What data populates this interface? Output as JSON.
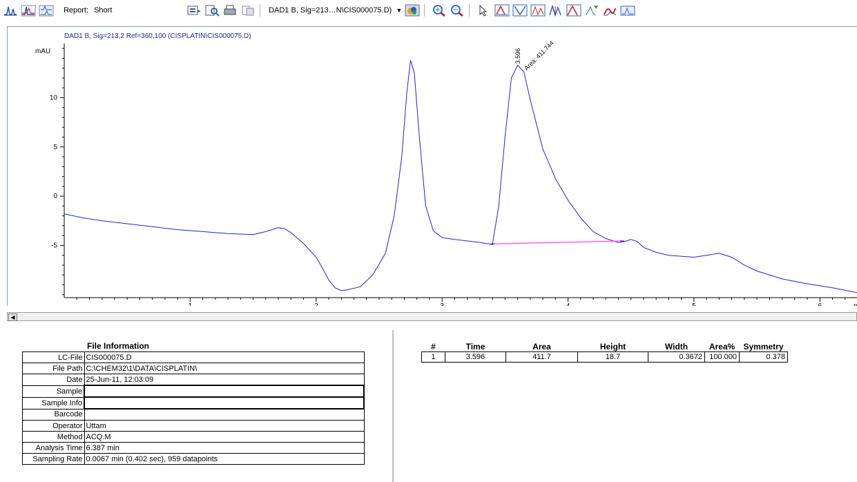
{
  "toolbar": {
    "report_label": "Report:",
    "report_value": "Short",
    "signal_select": "DAD1 B, Sig=213…N\\CIS000075.D)",
    "icons": [
      "chromatogram-icon",
      "overlay-icon",
      "separate-icon",
      "export-icon",
      "preview-icon",
      "print-icon",
      "copy-icon",
      "signal-select",
      "color-icon",
      "zoom-in-icon",
      "zoom-out-icon",
      "select-icon",
      "baseline-icon",
      "valley-icon",
      "drop-icon",
      "split-icon",
      "peak-icon",
      "integrate-icon",
      "manual-icon",
      "spectrum-icon"
    ]
  },
  "chart_data": {
    "type": "line",
    "title": "DAD1 B, Sig=213,2 Ref=360,100 (CISPLATIN\\CIS000075.D)",
    "ylabel": "mAU",
    "xlabel": "",
    "xlim": [
      0,
      6.3
    ],
    "ylim": [
      -10.3,
      15.5
    ],
    "xticks": [
      1,
      2,
      3,
      4,
      5,
      6
    ],
    "yticks": [
      -5,
      0,
      5,
      10
    ],
    "x_partial_unit_label": "m",
    "trace_color": "#2020e0",
    "baseline_color": "#ff40ff",
    "series": [
      {
        "x": [
          0.0,
          0.15,
          0.3,
          0.5,
          0.7,
          0.9,
          1.1,
          1.3,
          1.5,
          1.6,
          1.7,
          1.75,
          1.8,
          1.9,
          2.0,
          2.05,
          2.1,
          2.15,
          2.2,
          2.25,
          2.35,
          2.45,
          2.55,
          2.62,
          2.68,
          2.72,
          2.75,
          2.78,
          2.82,
          2.87,
          2.93,
          3.0,
          3.1,
          3.3,
          3.4,
          3.45,
          3.5,
          3.55,
          3.6,
          3.65,
          3.7,
          3.8,
          3.9,
          4.0,
          4.1,
          4.2,
          4.3,
          4.4,
          4.45,
          4.5,
          4.55,
          4.6,
          4.7,
          4.8,
          5.0,
          5.1,
          5.2,
          5.3,
          5.4,
          5.5,
          5.7,
          5.9,
          6.1,
          6.3
        ],
        "y": [
          -1.8,
          -2.2,
          -2.5,
          -2.8,
          -3.1,
          -3.4,
          -3.6,
          -3.8,
          -3.9,
          -3.6,
          -3.2,
          -3.3,
          -3.7,
          -4.8,
          -6.2,
          -7.3,
          -8.5,
          -9.3,
          -9.6,
          -9.5,
          -9.2,
          -8.0,
          -5.8,
          -2.0,
          4.0,
          10.5,
          13.8,
          12.5,
          6.0,
          -1.0,
          -3.5,
          -4.2,
          -4.4,
          -4.7,
          -4.9,
          -1.0,
          6.0,
          12.0,
          13.3,
          12.6,
          9.8,
          4.8,
          1.8,
          -0.4,
          -2.2,
          -3.6,
          -4.3,
          -4.7,
          -4.6,
          -4.4,
          -4.6,
          -5.2,
          -5.7,
          -6.0,
          -6.2,
          -6.0,
          -5.8,
          -6.2,
          -7.0,
          -7.6,
          -8.4,
          -8.9,
          -9.3,
          -9.8
        ]
      }
    ],
    "integration_baseline": {
      "x": [
        3.4,
        4.43
      ],
      "y": [
        -4.85,
        -4.55
      ]
    },
    "annotations": [
      {
        "label": "3.596",
        "x": 3.596,
        "y": 13.3
      },
      {
        "label": "Area: 411.744",
        "x": 3.596,
        "y": 13.3
      }
    ]
  },
  "file_info": {
    "title": "File Information",
    "rows": [
      {
        "label": "LC-File",
        "value": "CIS000075.D"
      },
      {
        "label": "File Path",
        "value": "C:\\CHEM32\\1\\DATA\\CISPLATIN\\"
      },
      {
        "label": "Date",
        "value": "25-Jun-11, 12:03:09"
      },
      {
        "label": "Sample",
        "value": ""
      },
      {
        "label": "Sample Info",
        "value": ""
      },
      {
        "label": "Barcode",
        "value": ""
      },
      {
        "label": "Operator",
        "value": "Uttam"
      },
      {
        "label": "Method",
        "value": "ACQ.M"
      },
      {
        "label": "Analysis Time",
        "value": "6.387 min"
      },
      {
        "label": "Sampling Rate",
        "value": "0.0067 min  (0.402 sec),  959 datapoints"
      }
    ]
  },
  "peak_table": {
    "headers": [
      "#",
      "Time",
      "Area",
      "Height",
      "Width",
      "Area%",
      "Symmetry"
    ],
    "rows": [
      [
        "1",
        "3.596",
        "411.7",
        "18.7",
        "0.3672",
        "100.000",
        "0.378"
      ]
    ]
  }
}
